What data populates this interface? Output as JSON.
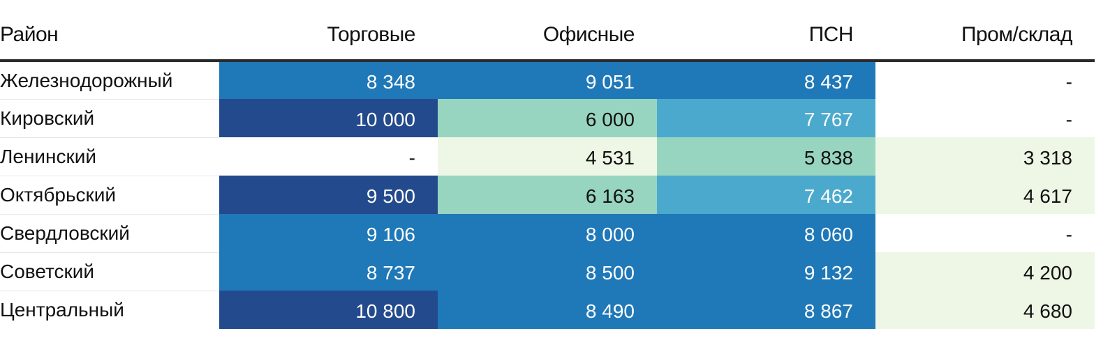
{
  "chart_data": {
    "type": "heatmap",
    "columns": [
      "Район",
      "Торговые",
      "Офисные",
      "ПСН",
      "Пром/склад"
    ],
    "rows": [
      {
        "district": "Железнодорожный",
        "cells": [
          "8 348",
          "9 051",
          "8 437",
          "-"
        ],
        "values": [
          8348,
          9051,
          8437,
          null
        ]
      },
      {
        "district": "Кировский",
        "cells": [
          "10 000",
          "6 000",
          "7 767",
          "-"
        ],
        "values": [
          10000,
          6000,
          7767,
          null
        ]
      },
      {
        "district": "Ленинский",
        "cells": [
          "-",
          "4 531",
          "5 838",
          "3 318"
        ],
        "values": [
          null,
          4531,
          5838,
          3318
        ]
      },
      {
        "district": "Октябрьский",
        "cells": [
          "9 500",
          "6 163",
          "7 462",
          "4 617"
        ],
        "values": [
          9500,
          6163,
          7462,
          4617
        ]
      },
      {
        "district": "Свердловский",
        "cells": [
          "9 106",
          "8 000",
          "8 060",
          "-"
        ],
        "values": [
          9106,
          8000,
          8060,
          null
        ]
      },
      {
        "district": "Советский",
        "cells": [
          "8 737",
          "8 500",
          "9 132",
          "4 200"
        ],
        "values": [
          8737,
          8500,
          9132,
          4200
        ]
      },
      {
        "district": "Центральный",
        "cells": [
          "10 800",
          "8 490",
          "8 867",
          "4 680"
        ],
        "values": [
          10800,
          8490,
          8867,
          4680
        ]
      }
    ],
    "color_scale": [
      {
        "max": 5000,
        "background": "#eef7e6",
        "text": "#111111"
      },
      {
        "max": 7000,
        "background": "#98d5c0",
        "text": "#111111"
      },
      {
        "max": 8000,
        "background": "#4ba9cd",
        "text": "#ffffff"
      },
      {
        "max": 9500,
        "background": "#1f78b7",
        "text": "#ffffff"
      },
      {
        "max": 100000,
        "background": "#234a8c",
        "text": "#ffffff"
      }
    ],
    "empty_color": "#ffffff",
    "empty_text_color": "#111111"
  }
}
